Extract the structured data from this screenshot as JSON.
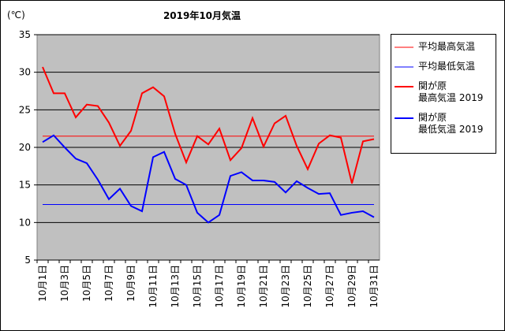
{
  "chart_data": {
    "type": "line",
    "title": "2019年10月気温",
    "y_unit": "(℃)",
    "categories": [
      "10月1日",
      null,
      "10月3日",
      null,
      "10月5日",
      null,
      "10月7日",
      null,
      "10月9日",
      null,
      "10月11日",
      null,
      "10月13日",
      null,
      "10月15日",
      null,
      "10月17日",
      null,
      "10月19日",
      null,
      "10月21日",
      null,
      "10月23日",
      null,
      "10月25日",
      null,
      "10月27日",
      null,
      "10月29日",
      null,
      "10月31日"
    ],
    "ylim": [
      5,
      35
    ],
    "yticks": [
      5,
      10,
      15,
      20,
      25,
      30,
      35
    ],
    "grid": true,
    "plot_background": "#c0c0c0",
    "legend": "right",
    "series": [
      {
        "name": "平均最高気温",
        "color": "#ff0000",
        "line_width": 1,
        "values": [
          21.5,
          21.5,
          21.5,
          21.5,
          21.5,
          21.5,
          21.5,
          21.5,
          21.5,
          21.5,
          21.5,
          21.5,
          21.5,
          21.5,
          21.5,
          21.5,
          21.5,
          21.5,
          21.5,
          21.5,
          21.5,
          21.5,
          21.5,
          21.5,
          21.5,
          21.5,
          21.5,
          21.5,
          21.5,
          21.5,
          21.5
        ]
      },
      {
        "name": "平均最低気温",
        "color": "#0000ff",
        "line_width": 1,
        "values": [
          12.4,
          12.4,
          12.4,
          12.4,
          12.4,
          12.4,
          12.4,
          12.4,
          12.4,
          12.4,
          12.4,
          12.4,
          12.4,
          12.4,
          12.4,
          12.4,
          12.4,
          12.4,
          12.4,
          12.4,
          12.4,
          12.4,
          12.4,
          12.4,
          12.4,
          12.4,
          12.4,
          12.4,
          12.4,
          12.4,
          12.4
        ]
      },
      {
        "name": "関が原\n最高気温 2019",
        "color": "#ff0000",
        "line_width": 2,
        "values": [
          30.7,
          27.2,
          27.2,
          24.0,
          25.7,
          25.5,
          23.3,
          20.2,
          22.2,
          27.2,
          28.0,
          26.8,
          21.8,
          18.0,
          21.5,
          20.4,
          22.5,
          18.3,
          19.9,
          23.9,
          20.1,
          23.2,
          24.2,
          20.2,
          17.1,
          20.5,
          21.6,
          21.3,
          15.2,
          20.8,
          21.1
        ]
      },
      {
        "name": "関が原\n最低気温 2019",
        "color": "#0000ff",
        "line_width": 2,
        "values": [
          20.7,
          21.6,
          20.0,
          18.5,
          17.9,
          15.7,
          13.1,
          14.5,
          12.2,
          11.5,
          18.7,
          19.4,
          15.8,
          15.0,
          11.3,
          10.0,
          11.0,
          16.2,
          16.7,
          15.6,
          15.6,
          15.4,
          14.0,
          15.5,
          14.6,
          13.8,
          13.9,
          11.0,
          11.3,
          11.5,
          10.7
        ]
      }
    ]
  }
}
